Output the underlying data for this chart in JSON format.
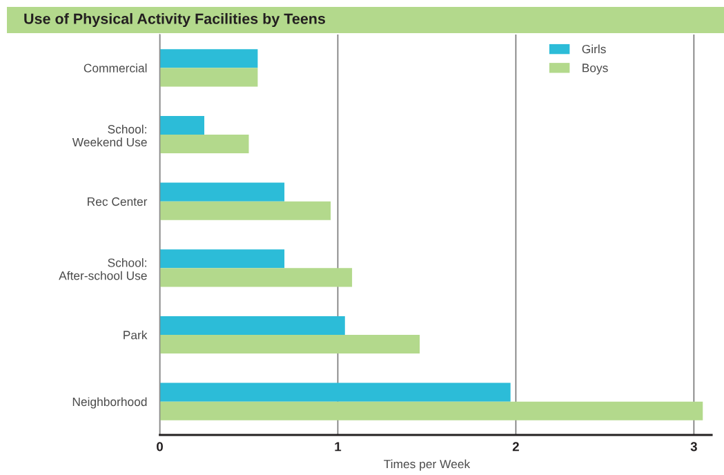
{
  "chart_data": {
    "type": "bar",
    "orientation": "horizontal",
    "title": "Use of Physical Activity Facilities by Teens",
    "xlabel": "Times per Week",
    "categories": [
      "Commercial",
      "School:\nWeekend Use",
      "Rec Center",
      "School:\nAfter-school Use",
      "Park",
      "Neighborhood"
    ],
    "series": [
      {
        "name": "Girls",
        "color": "#2cbcd8",
        "values": [
          0.55,
          0.25,
          0.7,
          0.7,
          1.04,
          1.97
        ]
      },
      {
        "name": "Boys",
        "color": "#b3d98c",
        "values": [
          0.55,
          0.5,
          0.96,
          1.08,
          1.46,
          3.05
        ]
      }
    ],
    "xlim": [
      0,
      3.1
    ],
    "xticks": [
      0,
      1,
      2,
      3
    ],
    "grid": "x",
    "legend": "top right"
  }
}
